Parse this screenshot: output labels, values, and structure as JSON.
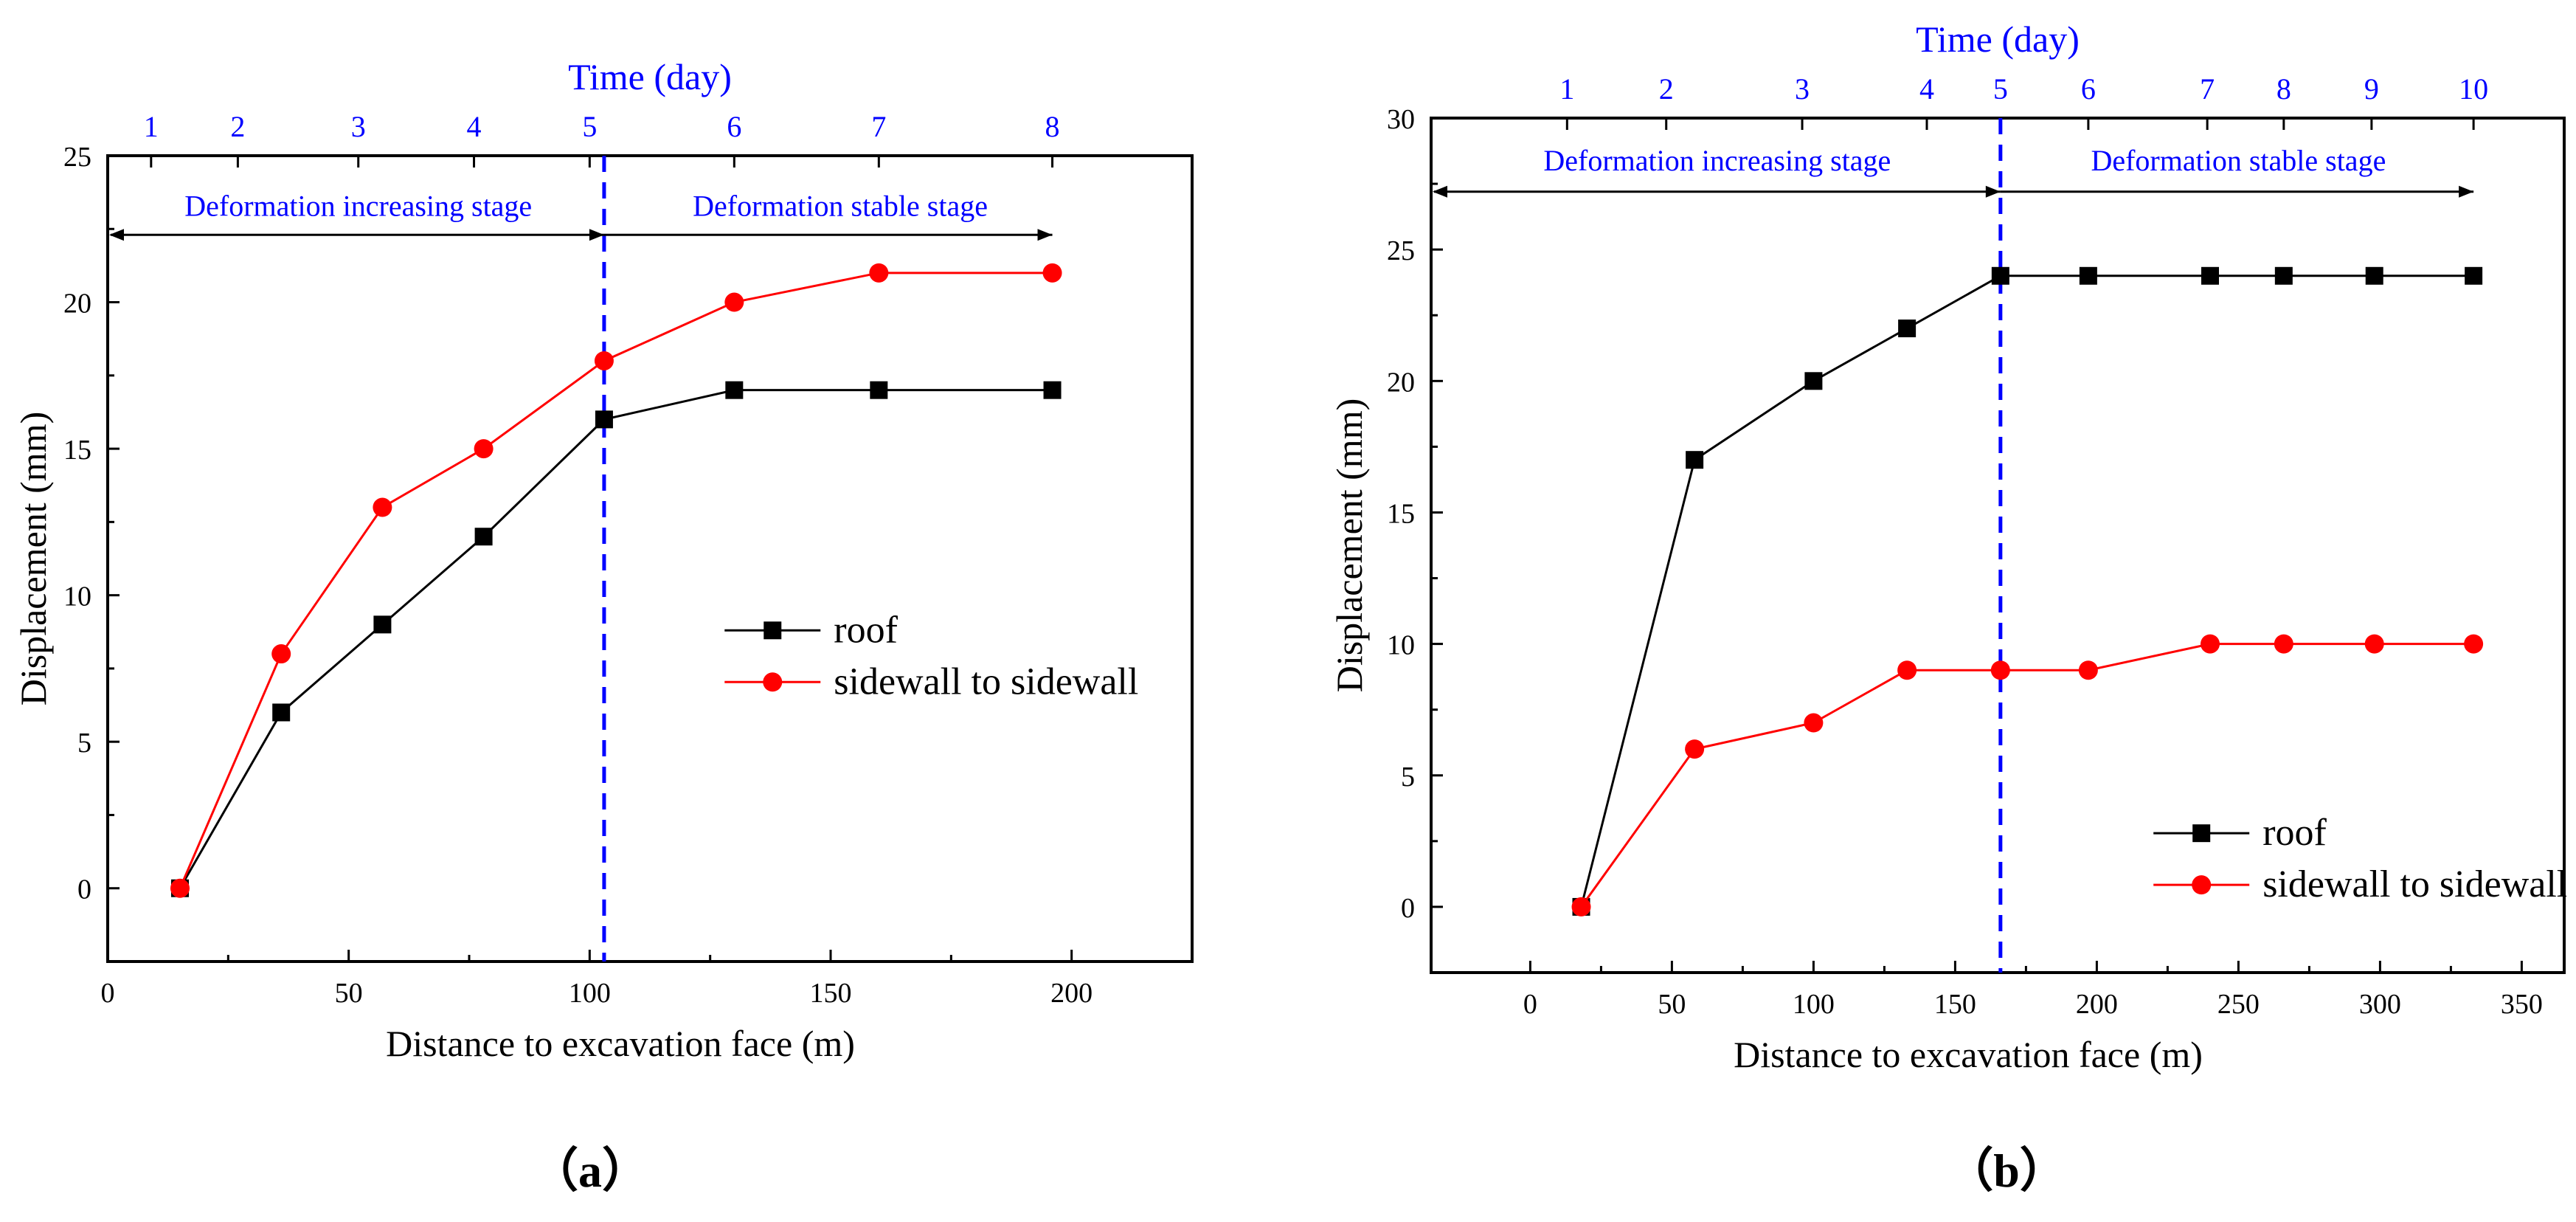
{
  "chart_data": [
    {
      "type": "line",
      "caption": "（a）",
      "top_title": "Time (day)",
      "xlabel": "Distance to excavation face (m)",
      "ylabel": "Displacement (mm)",
      "xlim": [
        0,
        225
      ],
      "ylim": [
        -2.5,
        25
      ],
      "xticks": [
        0,
        50,
        100,
        150,
        200
      ],
      "yticks": [
        0,
        5,
        10,
        15,
        20,
        25
      ],
      "top_ticks": [
        {
          "day": "1",
          "x": 9
        },
        {
          "day": "2",
          "x": 27
        },
        {
          "day": "3",
          "x": 52
        },
        {
          "day": "4",
          "x": 76
        },
        {
          "day": "5",
          "x": 100
        },
        {
          "day": "6",
          "x": 130
        },
        {
          "day": "7",
          "x": 160
        },
        {
          "day": "8",
          "x": 196
        }
      ],
      "divider_x": 103,
      "arrow_y": 22.3,
      "stage_label_y": 23.3,
      "arrow_x_range": [
        0,
        196
      ],
      "stages": [
        {
          "label": "Deformation increasing stage",
          "x": 52
        },
        {
          "label": "Deformation stable stage",
          "x": 152
        }
      ],
      "legend_anchor": {
        "x": 128,
        "y": 8.8
      },
      "series": [
        {
          "name": "roof",
          "color": "#000000",
          "marker": "square",
          "x": [
            15,
            36,
            57,
            78,
            103,
            130,
            160,
            196
          ],
          "y": [
            0,
            6,
            9,
            12,
            16,
            17,
            17,
            17
          ]
        },
        {
          "name": "sidewall to sidewall",
          "color": "#ff0000",
          "marker": "circle",
          "x": [
            15,
            36,
            57,
            78,
            103,
            130,
            160,
            196
          ],
          "y": [
            0,
            8,
            13,
            15,
            18,
            20,
            21,
            21
          ]
        }
      ]
    },
    {
      "type": "line",
      "caption": "（b）",
      "top_title": "Time (day)",
      "xlabel": "Distance to excavation face (m)",
      "ylabel": "Displacement (mm)",
      "xlim": [
        -35,
        365
      ],
      "ylim": [
        -2.5,
        30
      ],
      "xticks": [
        0,
        50,
        100,
        150,
        200,
        250,
        300,
        350
      ],
      "yticks": [
        0,
        5,
        10,
        15,
        20,
        25,
        30
      ],
      "top_ticks": [
        {
          "day": "1",
          "x": 13
        },
        {
          "day": "2",
          "x": 48
        },
        {
          "day": "3",
          "x": 96
        },
        {
          "day": "4",
          "x": 140
        },
        {
          "day": "5",
          "x": 166
        },
        {
          "day": "6",
          "x": 197
        },
        {
          "day": "7",
          "x": 239
        },
        {
          "day": "8",
          "x": 266
        },
        {
          "day": "9",
          "x": 297
        },
        {
          "day": "10",
          "x": 333
        }
      ],
      "divider_x": 166,
      "arrow_y": 27.2,
      "stage_label_y": 28.4,
      "arrow_x_range": [
        -35,
        333
      ],
      "stages": [
        {
          "label": "Deformation increasing stage",
          "x": 66
        },
        {
          "label": "Deformation stable stage",
          "x": 250
        }
      ],
      "legend_anchor": {
        "x": 220,
        "y": 2.8
      },
      "series": [
        {
          "name": "roof",
          "color": "#000000",
          "marker": "square",
          "x": [
            18,
            58,
            100,
            133,
            166,
            197,
            240,
            266,
            298,
            333
          ],
          "y": [
            0,
            17,
            20,
            22,
            24,
            24,
            24,
            24,
            24,
            24
          ]
        },
        {
          "name": "sidewall to sidewall",
          "color": "#ff0000",
          "marker": "circle",
          "x": [
            18,
            58,
            100,
            133,
            166,
            197,
            240,
            266,
            298,
            333
          ],
          "y": [
            0,
            6,
            7,
            9,
            9,
            9,
            10,
            10,
            10,
            10
          ]
        }
      ]
    }
  ]
}
